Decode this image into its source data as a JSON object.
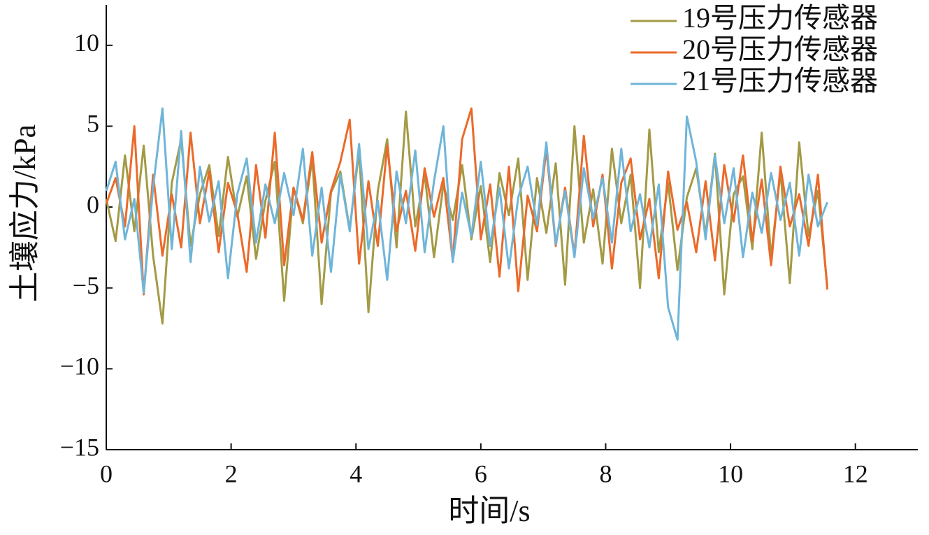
{
  "chart_data": {
    "type": "line",
    "xlabel": "时间/s",
    "ylabel": "土壤应力/kPa",
    "x": [
      0,
      0.15,
      0.3,
      0.45,
      0.6,
      0.75,
      0.9,
      1.05,
      1.2,
      1.35,
      1.5,
      1.65,
      1.8,
      1.95,
      2.1,
      2.25,
      2.4,
      2.55,
      2.7,
      2.85,
      3,
      3.15,
      3.3,
      3.45,
      3.6,
      3.75,
      3.9,
      4.05,
      4.2,
      4.35,
      4.5,
      4.65,
      4.8,
      4.95,
      5.1,
      5.25,
      5.4,
      5.55,
      5.7,
      5.85,
      6,
      6.15,
      6.3,
      6.45,
      6.6,
      6.75,
      6.9,
      7.05,
      7.2,
      7.35,
      7.5,
      7.65,
      7.8,
      7.95,
      8.1,
      8.25,
      8.4,
      8.55,
      8.7,
      8.85,
      9,
      9.15,
      9.3,
      9.45,
      9.6,
      9.75,
      9.9,
      10.05,
      10.2,
      10.35,
      10.5,
      10.65,
      10.8,
      10.95,
      11.1,
      11.25,
      11.4,
      11.55
    ],
    "series": [
      {
        "name": "19号压力传感器",
        "color": "#a39a45",
        "values": [
          0.5,
          -2.1,
          3.2,
          -1.5,
          3.8,
          -3.0,
          -7.2,
          1.5,
          4.2,
          -2.4,
          0.8,
          2.6,
          -1.8,
          3.1,
          -0.6,
          1.9,
          -3.2,
          0.4,
          2.8,
          -5.8,
          1.2,
          -1.0,
          3.0,
          -6.0,
          0.9,
          2.2,
          -1.4,
          3.5,
          -6.5,
          1.0,
          4.2,
          -2.5,
          5.9,
          -1.2,
          2.0,
          -3.1,
          1.4,
          -0.8,
          2.6,
          -2.0,
          1.3,
          -3.4,
          2.1,
          -0.5,
          3.0,
          -4.5,
          1.8,
          -1.6,
          2.7,
          -4.8,
          5.0,
          -2.2,
          1.1,
          -3.5,
          3.6,
          -1.0,
          2.0,
          -5.0,
          4.8,
          -2.8,
          1.5,
          -3.9,
          0.6,
          2.4,
          -1.7,
          3.3,
          -5.4,
          0.8,
          1.9,
          -2.6,
          4.6,
          -3.1,
          2.2,
          -4.7,
          4.0,
          -1.8,
          1.0,
          -4.9
        ]
      },
      {
        "name": "20号压力传感器",
        "color": "#eb6a2a",
        "values": [
          0.2,
          1.8,
          -1.2,
          5.0,
          -5.4,
          2.0,
          -3.0,
          0.8,
          -2.5,
          4.6,
          -1.0,
          2.2,
          -2.8,
          1.5,
          -0.4,
          -4.0,
          2.6,
          -1.9,
          4.6,
          -3.6,
          1.2,
          -0.8,
          3.4,
          -2.2,
          1.0,
          2.8,
          5.4,
          -3.5,
          1.6,
          -2.4,
          3.8,
          -1.5,
          1.0,
          -2.7,
          2.4,
          -0.6,
          1.8,
          -3.3,
          4.2,
          6.1,
          -2.0,
          1.4,
          -4.3,
          2.5,
          -5.2,
          0.7,
          -1.5,
          3.6,
          -2.4,
          1.2,
          -3.0,
          4.4,
          -1.2,
          2.0,
          -3.8,
          1.5,
          3.0,
          -2.0,
          0.5,
          -4.4,
          2.2,
          -1.4,
          0.3,
          -2.8,
          1.6,
          -3.3,
          2.6,
          -0.9,
          3.2,
          -2.1,
          1.7,
          -3.6,
          2.5,
          -1.2,
          0.8,
          -2.4,
          2.0,
          -5.1
        ]
      },
      {
        "name": "21号压力传感器",
        "color": "#6fb5d9",
        "values": [
          1.0,
          2.8,
          -2.0,
          0.5,
          -5.3,
          1.2,
          6.1,
          -2.6,
          4.7,
          -3.4,
          2.5,
          -0.9,
          1.6,
          -4.4,
          0.8,
          3.0,
          -2.2,
          1.4,
          -1.0,
          2.1,
          -0.5,
          3.6,
          -3.0,
          1.2,
          -4.0,
          2.0,
          -1.5,
          3.9,
          -2.6,
          0.4,
          -4.5,
          2.2,
          -1.0,
          3.5,
          -2.8,
          1.6,
          5.0,
          -3.4,
          0.9,
          -1.8,
          2.8,
          -2.4,
          1.2,
          -3.8,
          0.6,
          2.5,
          -1.1,
          4.0,
          -2.3,
          1.0,
          -3.1,
          2.4,
          -0.7,
          1.8,
          -2.2,
          3.6,
          -1.5,
          0.8,
          -2.5,
          1.4,
          -6.2,
          -8.2,
          5.6,
          2.8,
          -2.0,
          3.2,
          -1.0,
          2.4,
          -3.1,
          0.9,
          -1.6,
          2.1,
          -0.8,
          1.5,
          -3.0,
          2.0,
          -1.2,
          0.3
        ]
      }
    ],
    "xlim": [
      0,
      13
    ],
    "xticks": [
      0,
      2,
      4,
      6,
      8,
      10,
      12
    ],
    "ylim": [
      -15,
      12.5
    ],
    "yticks": [
      {
        "value": -15,
        "label": "−15"
      },
      {
        "value": -10,
        "label": "−10"
      },
      {
        "value": -5,
        "label": "−5"
      },
      0,
      5,
      10
    ],
    "legend": "upper right"
  }
}
